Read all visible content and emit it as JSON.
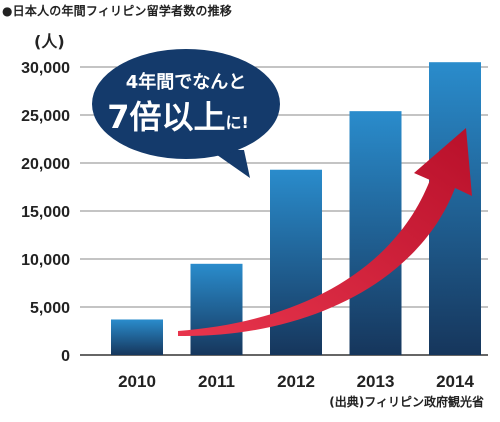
{
  "title": "●日本人の年間フィリピン留学者数の推移",
  "unit_label": "(人)",
  "source": "(出典)フィリピン政府観光省",
  "callout": {
    "line1": "4年間でなんと",
    "line2_big": "7倍以上",
    "line2_small": "に!"
  },
  "colors": {
    "bar_top": "#2a8ccc",
    "bar_bottom": "#16365c",
    "arrow": "#d01a34",
    "bubble": "#143a6b",
    "grid": "#8a8a8a"
  },
  "chart_data": {
    "type": "bar",
    "title": "●日本人の年間フィリピン留学者数の推移",
    "categories": [
      "2010",
      "2011",
      "2012",
      "2013",
      "2014"
    ],
    "values": [
      3700,
      9500,
      19300,
      25400,
      30500
    ],
    "ylabel": "(人)",
    "ylim": [
      0,
      30000
    ],
    "yticks": [
      "0",
      "5,000",
      "10,000",
      "15,000",
      "20,000",
      "25,000",
      "30,000"
    ],
    "grid": true,
    "source": "(出典)フィリピン政府観光省"
  }
}
